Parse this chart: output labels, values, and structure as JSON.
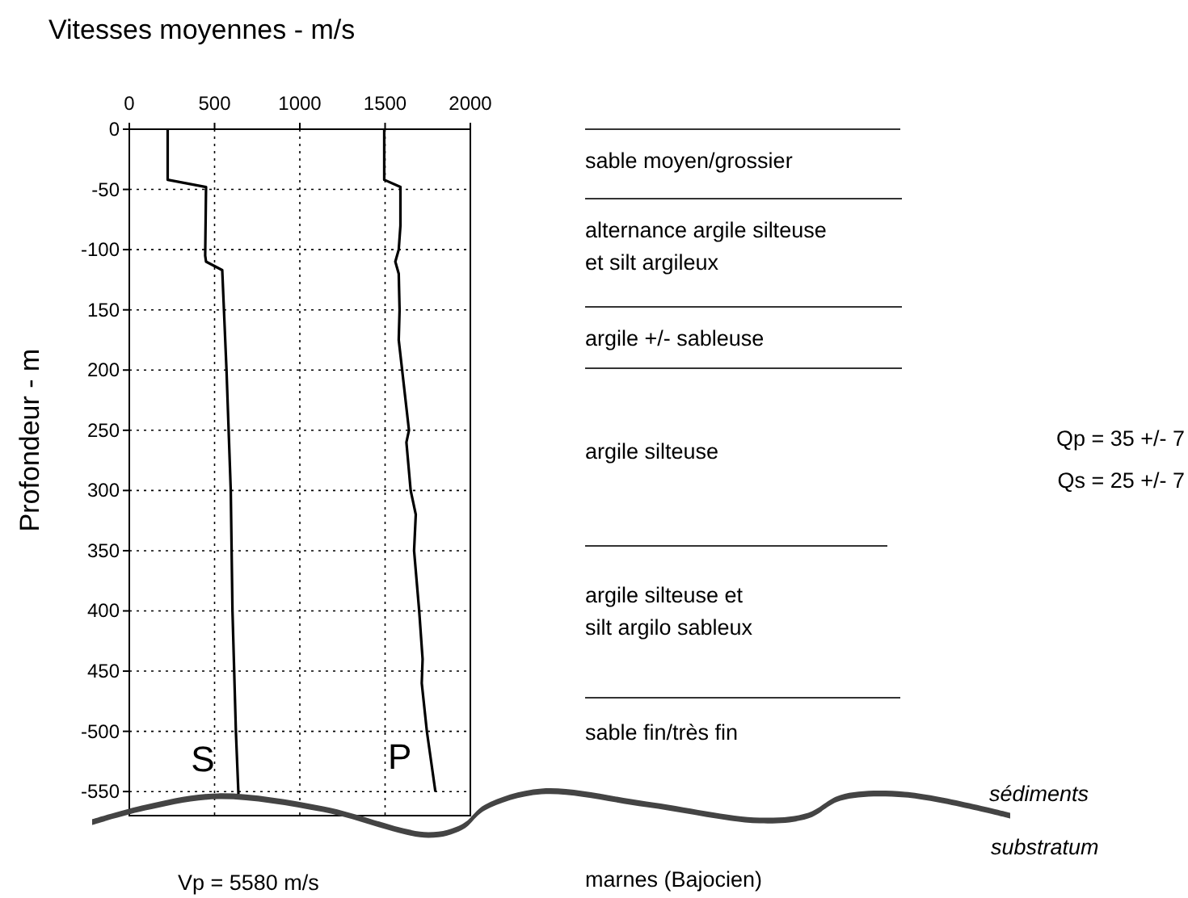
{
  "chart_data": {
    "type": "line",
    "xlabel": "Vitesses moyennes - m/s",
    "ylabel": "Profondeur - m",
    "xlim": [
      0,
      2000
    ],
    "xticks": [
      0,
      500,
      1000,
      1500,
      2000
    ],
    "ylim": [
      -570,
      0
    ],
    "yticks": [
      0,
      -50,
      -100,
      {
        "value": -150,
        "label": "150"
      },
      {
        "value": -200,
        "label": "200"
      },
      {
        "value": -250,
        "label": "250"
      },
      {
        "value": -300,
        "label": "300"
      },
      {
        "value": -350,
        "label": "350"
      },
      {
        "value": -400,
        "label": "400"
      },
      {
        "value": -450,
        "label": "450"
      },
      -500,
      -550
    ],
    "grid": true,
    "line_style": "solid",
    "series": [
      {
        "name": "S",
        "color": "#000000",
        "x": [
          225,
          225,
          450,
          445,
          450,
          545,
          570,
          595,
          605,
          625,
          640
        ],
        "values": [
          0,
          -42,
          -48,
          -105,
          -110,
          -117,
          -200,
          -300,
          -400,
          -500,
          -552
        ]
      },
      {
        "name": "P",
        "color": "#000000",
        "x": [
          1495,
          1495,
          1590,
          1590,
          1580,
          1560,
          1580,
          1585,
          1580,
          1600,
          1640,
          1625,
          1650,
          1680,
          1670,
          1700,
          1720,
          1715,
          1745,
          1795
        ],
        "values": [
          0,
          -42,
          -48,
          -80,
          -100,
          -110,
          -120,
          -150,
          -175,
          -200,
          -250,
          -260,
          -300,
          -320,
          -350,
          -400,
          -440,
          -460,
          -500,
          -550
        ]
      }
    ],
    "annotations": [
      "sable moyen/grossier",
      "alternance argile silteuse\net silt argileux",
      "argile +/- sableuse",
      "argile silteuse",
      "argile silteuse et\nsilt argilo sableux",
      "sable fin/très fin",
      "Qp = 35 +/- 7",
      "Qs = 25 +/- 7",
      "sédiments",
      "substratum",
      "Vp = 5580 m/s",
      "marnes (Bajocien)"
    ]
  }
}
